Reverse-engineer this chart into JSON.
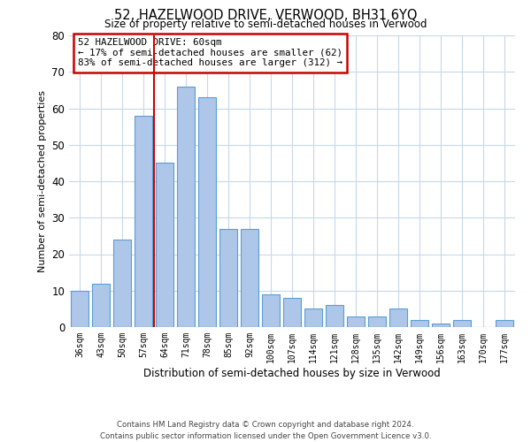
{
  "title": "52, HAZELWOOD DRIVE, VERWOOD, BH31 6YQ",
  "subtitle": "Size of property relative to semi-detached houses in Verwood",
  "xlabel": "Distribution of semi-detached houses by size in Verwood",
  "ylabel": "Number of semi-detached properties",
  "categories": [
    "36sqm",
    "43sqm",
    "50sqm",
    "57sqm",
    "64sqm",
    "71sqm",
    "78sqm",
    "85sqm",
    "92sqm",
    "100sqm",
    "107sqm",
    "114sqm",
    "121sqm",
    "128sqm",
    "135sqm",
    "142sqm",
    "149sqm",
    "156sqm",
    "163sqm",
    "170sqm",
    "177sqm"
  ],
  "values": [
    10,
    12,
    24,
    58,
    45,
    66,
    63,
    27,
    27,
    9,
    8,
    5,
    6,
    3,
    3,
    5,
    2,
    1,
    2,
    0,
    2
  ],
  "bar_color": "#aec6e8",
  "bar_edge_color": "#5a9fd4",
  "property_line_index": 3,
  "annotation_text_line1": "52 HAZELWOOD DRIVE: 60sqm",
  "annotation_text_line2": "← 17% of semi-detached houses are smaller (62)",
  "annotation_text_line3": "83% of semi-detached houses are larger (312) →",
  "annotation_box_color": "#ffffff",
  "annotation_box_edge_color": "#cc0000",
  "ylim": [
    0,
    80
  ],
  "yticks": [
    0,
    10,
    20,
    30,
    40,
    50,
    60,
    70,
    80
  ],
  "background_color": "#ffffff",
  "grid_color": "#c8d8e8",
  "footer_line1": "Contains HM Land Registry data © Crown copyright and database right 2024.",
  "footer_line2": "Contains public sector information licensed under the Open Government Licence v3.0."
}
